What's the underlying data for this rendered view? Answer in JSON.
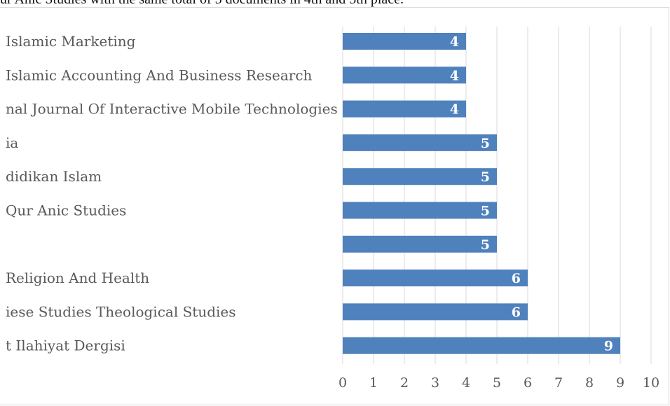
{
  "caption": "ur Anic Studies with the same total of 5 documents in 4th and 5th place.",
  "chart_data": {
    "type": "bar",
    "orientation": "horizontal",
    "categories": [
      "Islamic Marketing",
      "Islamic Accounting And Business Research",
      "nal Journal Of Interactive Mobile Technologies",
      "ia",
      "didikan Islam",
      "Qur Anic Studies",
      "",
      "Religion And Health",
      "iese Studies Theological Studies",
      "t Ilahiyat Dergisi"
    ],
    "values": [
      4,
      4,
      4,
      5,
      5,
      5,
      5,
      6,
      6,
      9
    ],
    "xlim": [
      0,
      10
    ],
    "xticks": [
      0,
      1,
      2,
      3,
      4,
      5,
      6,
      7,
      8,
      9,
      10
    ],
    "grid": true,
    "data_labels": true,
    "bar_color": "#4f81bd",
    "grid_color": "#d9d9d9"
  }
}
